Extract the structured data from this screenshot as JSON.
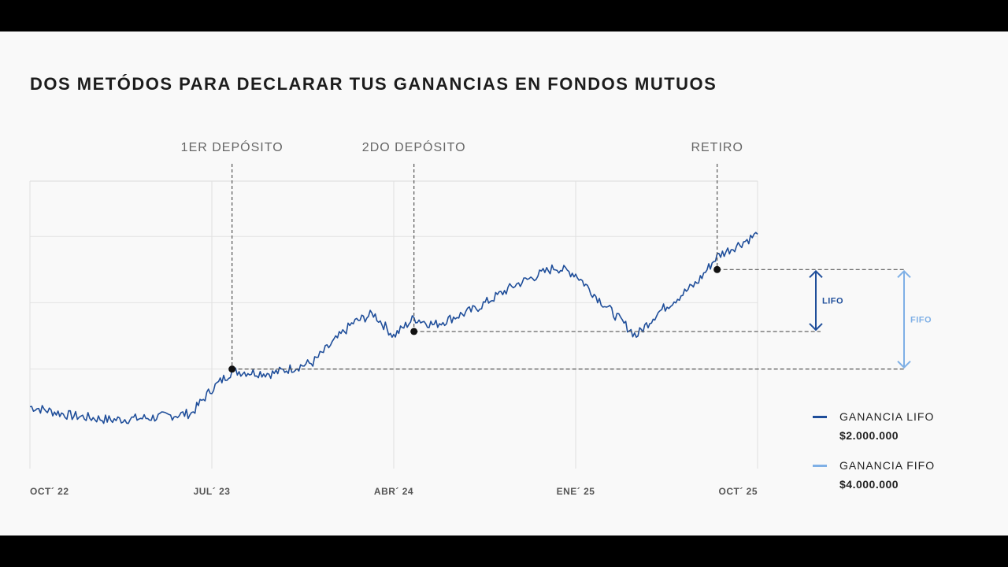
{
  "chart_data": {
    "type": "line",
    "title": "DOS METÓDOS PARA DECLARAR TUS GANANCIAS EN FONDOS MUTUOS",
    "x_ticks": [
      "OCT´ 22",
      "JUL´ 23",
      "ABR´ 24",
      "ENE´ 25",
      "OCT´ 25"
    ],
    "x": [
      "2022-10",
      "2022-12",
      "2023-02",
      "2023-04",
      "2023-06",
      "2023-07",
      "2023-08",
      "2023-10",
      "2023-12",
      "2024-02",
      "2024-03",
      "2024-04",
      "2024-05",
      "2024-06",
      "2024-08",
      "2024-10",
      "2024-12",
      "2025-01",
      "2025-02",
      "2025-04",
      "2025-05",
      "2025-07",
      "2025-08",
      "2025-10"
    ],
    "series": [
      {
        "values": [
          28,
          24,
          22,
          23,
          25,
          36,
          44,
          43,
          48,
          66,
          70,
          60,
          68,
          65,
          72,
          83,
          91,
          88,
          78,
          60,
          70,
          84,
          96,
          106
        ]
      }
    ],
    "ylim": [
      0,
      130
    ],
    "grid": true,
    "events": [
      {
        "label": "1ER DEPÓSITO",
        "x": "2023-08",
        "y": 45
      },
      {
        "label": "2DO DEPÓSITO",
        "x": "2024-05",
        "y": 62
      },
      {
        "label": "RETIRO",
        "x": "2025-08",
        "y": 90
      }
    ],
    "brackets": [
      {
        "label": "LIFO",
        "from_y": 62,
        "to_y": 90,
        "color": "#1f4e9a"
      },
      {
        "label": "FIFO",
        "from_y": 45,
        "to_y": 90,
        "color": "#7fb0e6"
      }
    ],
    "legend": [
      {
        "name": "GANANCIA LIFO",
        "value": "$2.000.000",
        "color": "#1f4e9a"
      },
      {
        "name": "GANANCIA FIFO",
        "value": "$4.000.000",
        "color": "#7fb0e6"
      }
    ]
  }
}
